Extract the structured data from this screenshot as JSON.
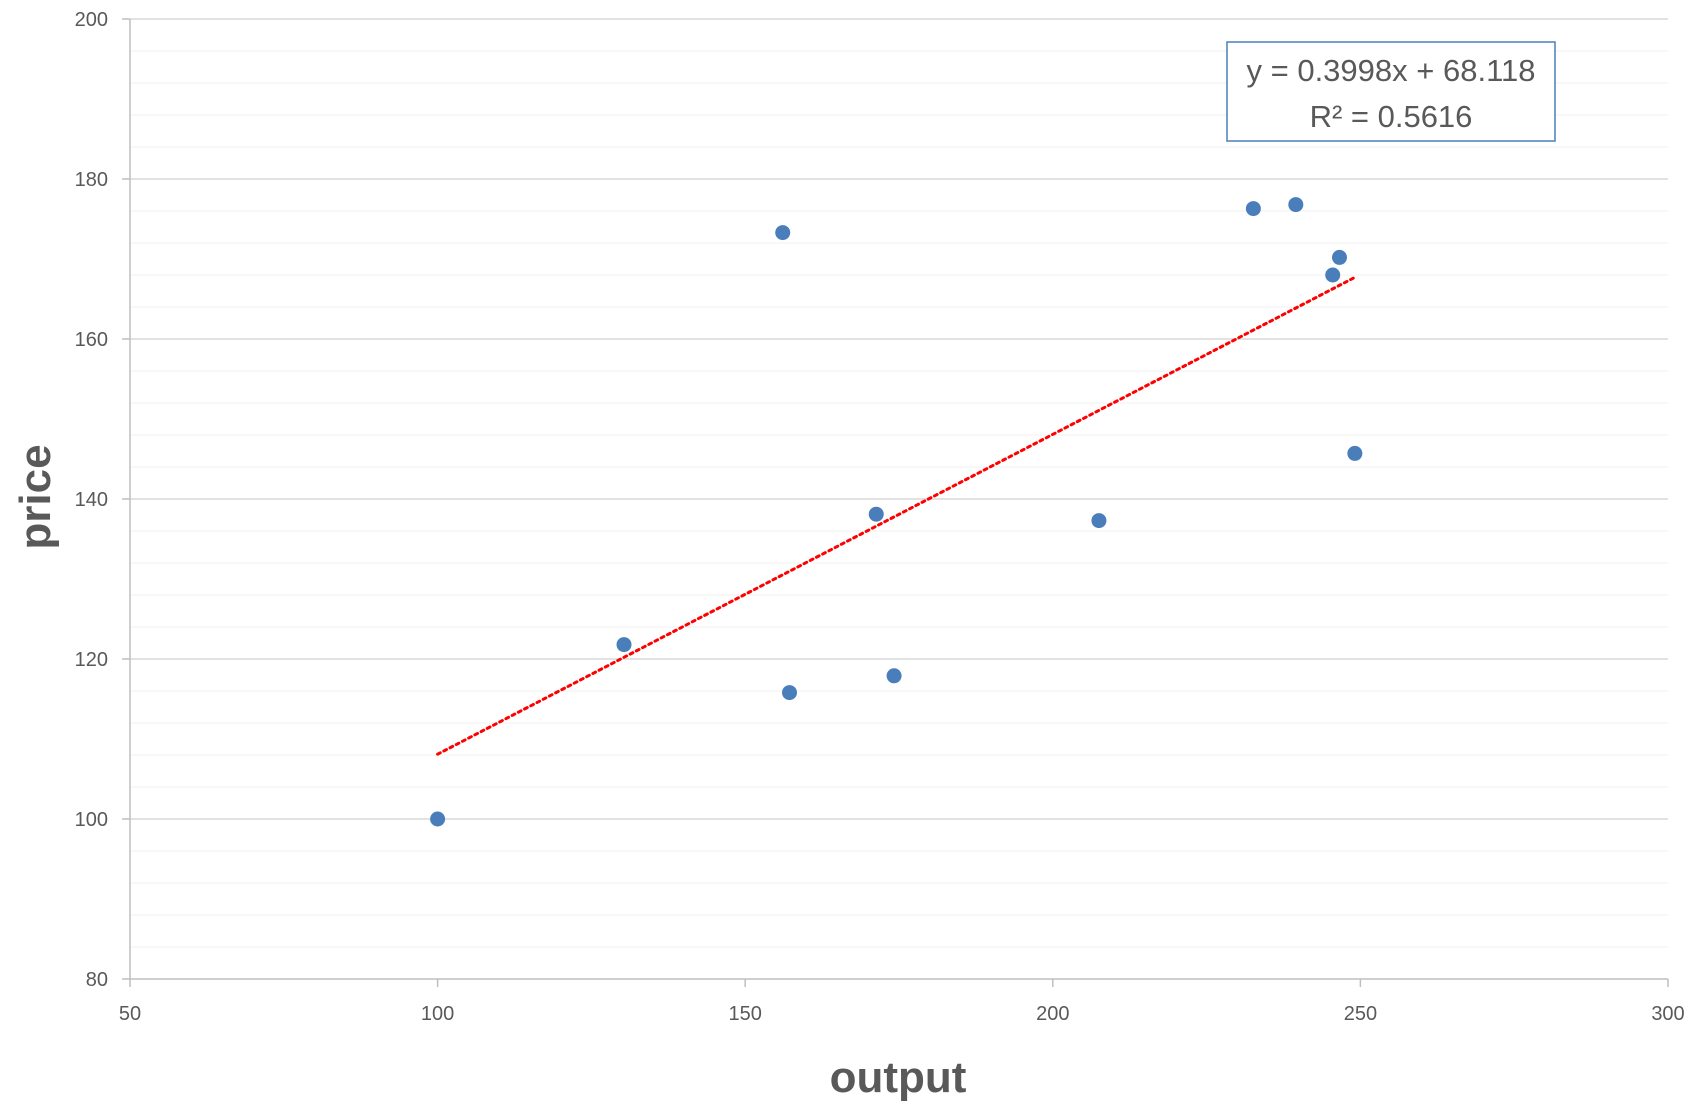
{
  "chart_data": {
    "type": "scatter",
    "title": "",
    "xlabel": "output",
    "ylabel": "price",
    "xlim": [
      50,
      300
    ],
    "ylim": [
      80,
      200
    ],
    "x_ticks": [
      "50",
      "100",
      "150",
      "200",
      "250",
      "300"
    ],
    "y_ticks": [
      "80",
      "100",
      "120",
      "140",
      "160",
      "180",
      "200"
    ],
    "grid": true,
    "series": [
      {
        "color": "#4a7ebb",
        "points": [
          {
            "x": 100,
            "y": 100
          },
          {
            "x": 130.3,
            "y": 121.8
          },
          {
            "x": 156.1,
            "y": 173.3
          },
          {
            "x": 157.2,
            "y": 115.8
          },
          {
            "x": 171.3,
            "y": 138.1
          },
          {
            "x": 174.2,
            "y": 117.9
          },
          {
            "x": 207.5,
            "y": 137.3
          },
          {
            "x": 232.6,
            "y": 176.3
          },
          {
            "x": 239.5,
            "y": 176.8
          },
          {
            "x": 245.5,
            "y": 168.0
          },
          {
            "x": 246.6,
            "y": 170.2
          },
          {
            "x": 249.1,
            "y": 145.7
          }
        ]
      }
    ],
    "trendline": {
      "type": "linear",
      "color": "#ff0000",
      "style": "dotted",
      "slope": 0.3998,
      "intercept": 68.118,
      "x_range": [
        100,
        249.1
      ],
      "equation": "y = 0.3998x + 68.118",
      "r_squared": "R² = 0.5616"
    }
  }
}
